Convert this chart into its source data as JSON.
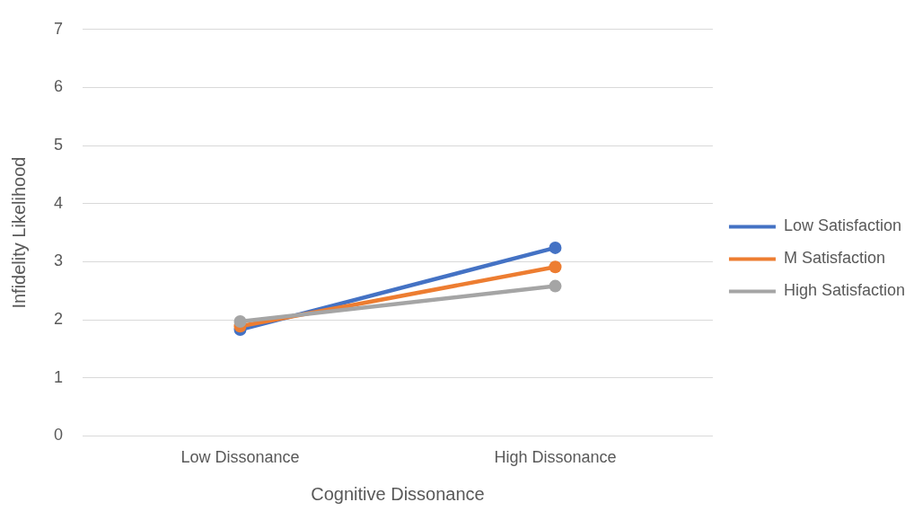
{
  "chart_data": {
    "type": "line",
    "xlabel": "Cognitive Dissonance",
    "ylabel": "Infidelity Likelihood",
    "categories": [
      "Low Dissonance",
      "High Dissonance"
    ],
    "series": [
      {
        "name": "Low Satisfaction",
        "color": "#4472c4",
        "values": [
          1.83,
          3.24
        ]
      },
      {
        "name": "M Satisfaction",
        "color": "#ed7d31",
        "values": [
          1.89,
          2.91
        ]
      },
      {
        "name": "High Satisfaction",
        "color": "#a5a5a5",
        "values": [
          1.97,
          2.58
        ]
      }
    ],
    "ylim": [
      0,
      7
    ],
    "yticks": [
      0,
      1,
      2,
      3,
      4,
      5,
      6,
      7
    ],
    "grid": "y",
    "legend": "right",
    "marker": "circle",
    "line_style": "solid"
  }
}
